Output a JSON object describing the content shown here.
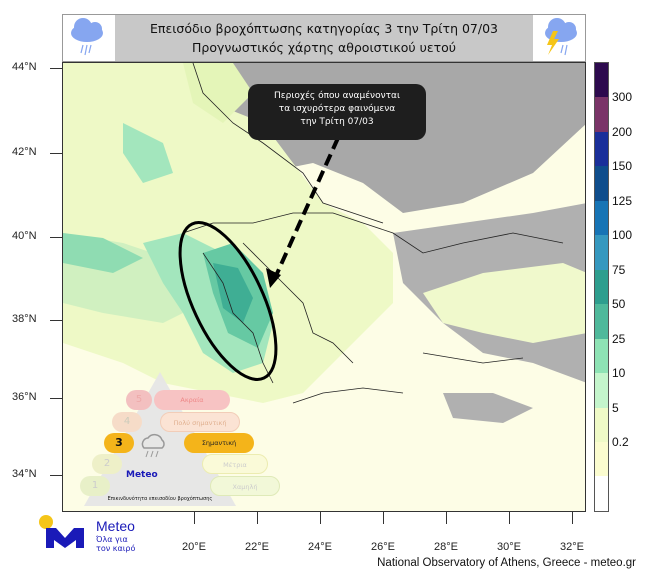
{
  "header": {
    "title_line1": "Επεισόδιο βροχόπτωσης κατηγορίας 3 την Τρίτη 07/03",
    "title_line2": "Προγνωστικός χάρτης αθροιστικού υετού",
    "left_icon": "rain-cloud-icon",
    "right_icon": "thunderstorm-cloud-icon"
  },
  "map": {
    "lat_labels": [
      "44°N",
      "42°N",
      "40°N",
      "38°N",
      "36°N",
      "34°N"
    ],
    "lon_labels": [
      "20°E",
      "22°E",
      "24°E",
      "26°E",
      "28°E",
      "30°E",
      "32°E"
    ],
    "callout": {
      "line1": "Περιοχές όπου αναμένονται",
      "line2": "τα ισχυρότερα φαινόμενα",
      "line3": "την Τρίτη 07/03"
    }
  },
  "colorbar": {
    "labels": [
      "300",
      "200",
      "150",
      "125",
      "100",
      "75",
      "50",
      "25",
      "10",
      "5",
      "0.2"
    ],
    "colors": [
      "#2d0a4e",
      "#7a3468",
      "#1a2f9a",
      "#0f4d8c",
      "#1774b5",
      "#3598bf",
      "#2e9e8e",
      "#4fb99b",
      "#8ee3b5",
      "#c4f5cc",
      "#effac7",
      "#fbfccf",
      "#ffffff"
    ]
  },
  "legend": {
    "levels": [
      {
        "n": "5",
        "label": "Ακραία"
      },
      {
        "n": "4",
        "label": "Πολύ σημαντική"
      },
      {
        "n": "3",
        "label": "Σημαντική"
      },
      {
        "n": "2",
        "label": "Μέτρια"
      },
      {
        "n": "1",
        "label": "Χαμηλή"
      }
    ],
    "caption": "Επικινδυνότητα επεισοδίου βροχόπτωσης",
    "logo_text": "Meteo"
  },
  "logo": {
    "name": "Meteo",
    "slogan1": "Όλα για",
    "slogan2": "τον καιρό"
  },
  "footer": "National Observatory of Athens, Greece - meteo.gr"
}
